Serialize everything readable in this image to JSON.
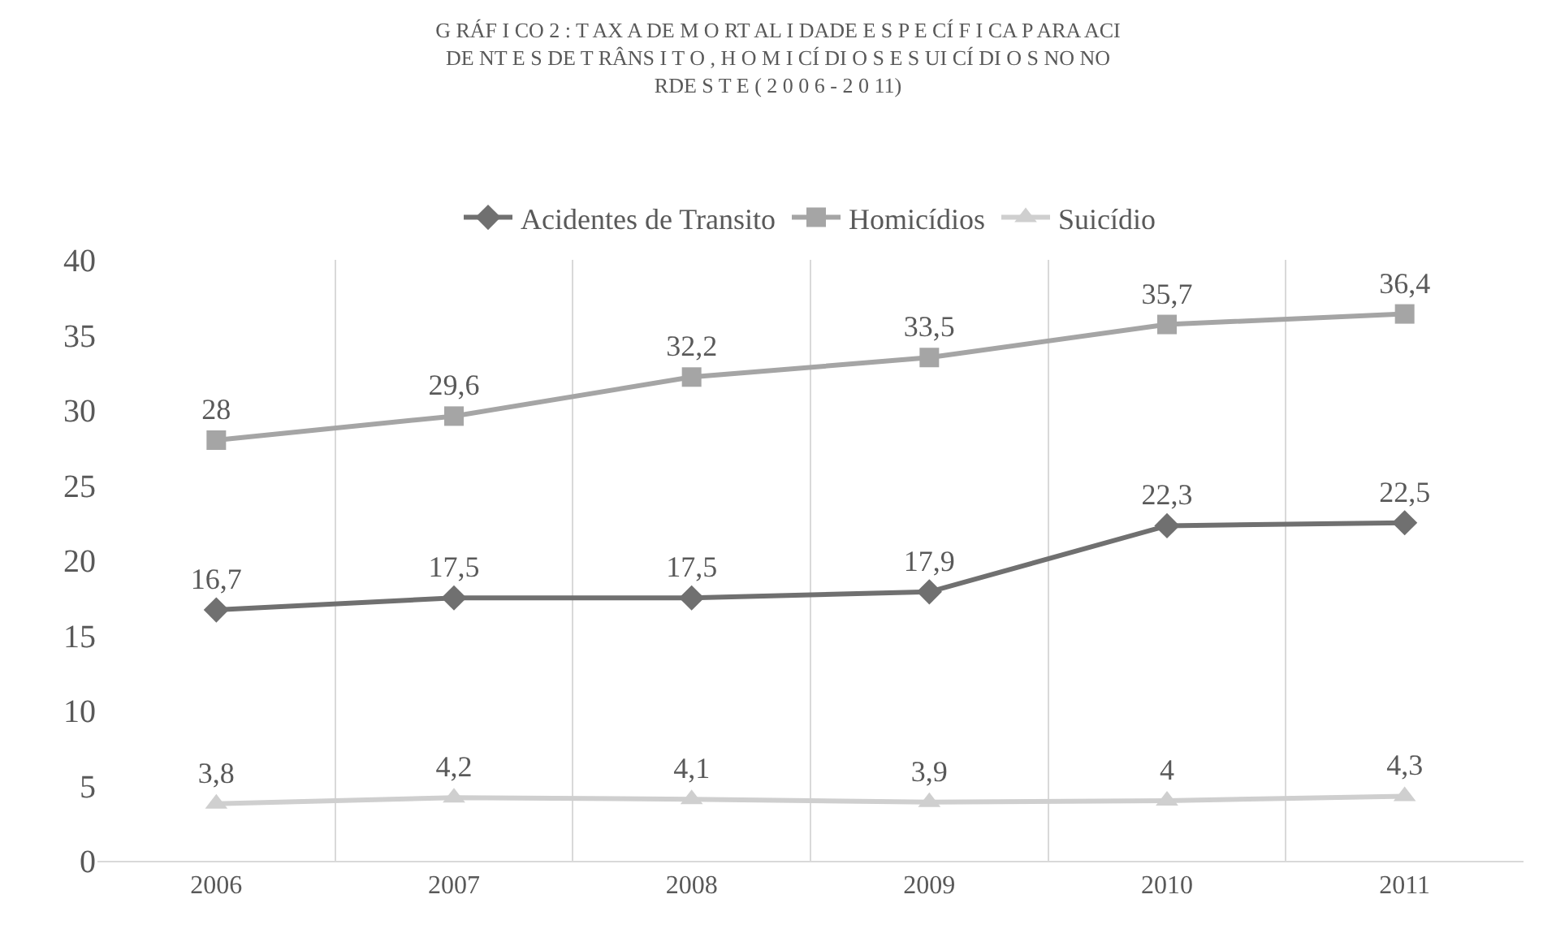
{
  "chart_data": {
    "type": "line",
    "title": "G RÁF I CO 2 : T AX A DE M O RT AL I DADE E S P E CÍ F I CA P ARA ACI\nDE NT E S DE T RÂNS I T O , H O M I CÍ DI O S E S UI CÍ DI O S NO NO\nRDE S T E ( 2 0 0 6 - 2 0 11)",
    "categories": [
      "2006",
      "2007",
      "2008",
      "2009",
      "2010",
      "2011"
    ],
    "series": [
      {
        "name": "Acidentes de Transito",
        "color": "#707070",
        "marker": "diamond",
        "values": [
          16.7,
          17.5,
          17.5,
          17.9,
          22.3,
          22.5
        ],
        "value_labels": [
          "16,7",
          "17,5",
          "17,5",
          "17,9",
          "22,3",
          "22,5"
        ]
      },
      {
        "name": "Homicídios",
        "color": "#a5a5a5",
        "marker": "square",
        "values": [
          28,
          29.6,
          32.2,
          33.5,
          35.7,
          36.4
        ],
        "value_labels": [
          "28",
          "29,6",
          "32,2",
          "33,5",
          "35,7",
          "36,4"
        ]
      },
      {
        "name": "Suicídio",
        "color": "#cfcfcf",
        "marker": "triangle",
        "values": [
          3.8,
          4.2,
          4.1,
          3.9,
          4,
          4.3
        ],
        "value_labels": [
          "3,8",
          "4,2",
          "4,1",
          "3,9",
          "4",
          "4,3"
        ]
      }
    ],
    "ylim": [
      0,
      40
    ],
    "yticks": [
      0,
      5,
      10,
      15,
      20,
      25,
      30,
      35,
      40
    ],
    "grid": "x",
    "legend": "top",
    "line_style": "solid"
  }
}
